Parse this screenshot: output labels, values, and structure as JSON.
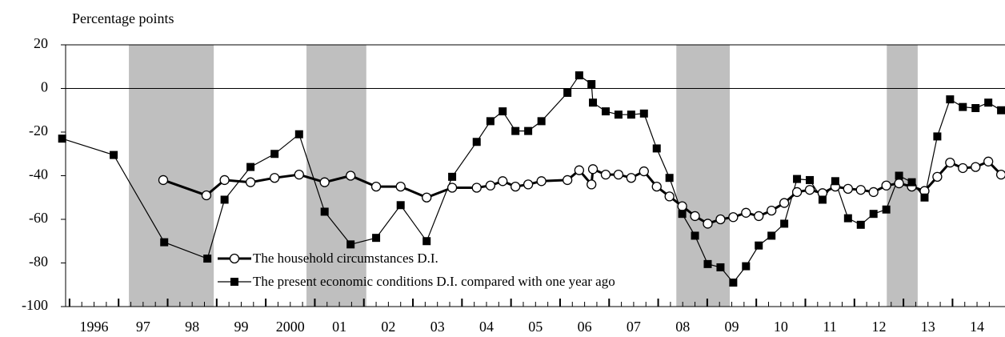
{
  "chart_data": {
    "type": "line",
    "y_axis_label": "Percentage points",
    "xlim": [
      1995.92,
      2015.07
    ],
    "ylim": [
      -100,
      20
    ],
    "yticks": [
      -100,
      -80,
      -60,
      -40,
      -20,
      0,
      20
    ],
    "xticks": [
      {
        "value": 1996.5,
        "label": "1996"
      },
      {
        "value": 1997.5,
        "label": "97"
      },
      {
        "value": 1998.5,
        "label": "98"
      },
      {
        "value": 1999.5,
        "label": "99"
      },
      {
        "value": 2000.5,
        "label": "2000"
      },
      {
        "value": 2001.5,
        "label": "01"
      },
      {
        "value": 2002.5,
        "label": "02"
      },
      {
        "value": 2003.5,
        "label": "03"
      },
      {
        "value": 2004.5,
        "label": "04"
      },
      {
        "value": 2005.5,
        "label": "05"
      },
      {
        "value": 2006.5,
        "label": "06"
      },
      {
        "value": 2007.5,
        "label": "07"
      },
      {
        "value": 2008.5,
        "label": "08"
      },
      {
        "value": 2009.5,
        "label": "09"
      },
      {
        "value": 2010.5,
        "label": "10"
      },
      {
        "value": 2011.5,
        "label": "11"
      },
      {
        "value": 2012.5,
        "label": "12"
      },
      {
        "value": 2013.5,
        "label": "13"
      },
      {
        "value": 2014.5,
        "label": "14"
      }
    ],
    "shaded_periods": [
      [
        1997.21,
        1998.94
      ],
      [
        2000.83,
        2002.05
      ],
      [
        2008.37,
        2009.46
      ],
      [
        2012.66,
        2013.29
      ]
    ],
    "shade_color": "#bfbfbf",
    "series": [
      {
        "name": "The household circumstances D.I.",
        "color": "#000000",
        "marker": "circle",
        "x": [
          1997.91,
          1998.79,
          1999.16,
          1999.69,
          2000.18,
          2000.68,
          2001.2,
          2001.73,
          2002.25,
          2002.75,
          2003.28,
          2003.8,
          2004.3,
          2004.58,
          2004.83,
          2005.09,
          2005.35,
          2005.62,
          2006.15,
          2006.39,
          2006.64,
          2006.67,
          2006.93,
          2007.19,
          2007.45,
          2007.71,
          2007.97,
          2008.23,
          2008.49,
          2008.75,
          2009.01,
          2009.27,
          2009.53,
          2009.79,
          2010.05,
          2010.31,
          2010.57,
          2010.83,
          2011.09,
          2011.35,
          2011.61,
          2011.87,
          2012.13,
          2012.39,
          2012.65,
          2012.91,
          2013.17,
          2013.43,
          2013.69,
          2013.95,
          2014.21,
          2014.47,
          2014.73,
          2014.99
        ],
        "values": [
          -42,
          -49,
          -42,
          -43,
          -41,
          -39.5,
          -43,
          -40,
          -45,
          -45,
          -50,
          -45.5,
          -45.5,
          -44.5,
          -42.5,
          -45,
          -44,
          -42.5,
          -42,
          -37.5,
          -44,
          -37,
          -39.5,
          -39.5,
          -41,
          -38,
          -45,
          -49.5,
          -54,
          -58.5,
          -62,
          -60,
          -59,
          -57,
          -58.5,
          -56,
          -52.5,
          -47.5,
          -46.5,
          -48,
          -45,
          -46,
          -46.5,
          -47.5,
          -44.5,
          -43.5,
          -45,
          -47,
          -40.5,
          -34,
          -36.5,
          -36,
          -33.5,
          -39.5
        ]
      },
      {
        "name": "The present economic conditions D.I. compared with one year ago",
        "color": "#000000",
        "marker": "square",
        "x": [
          1995.85,
          1996.9,
          1997.93,
          1998.81,
          1999.16,
          1999.69,
          2000.18,
          2000.68,
          2001.2,
          2001.73,
          2002.25,
          2002.75,
          2003.28,
          2003.8,
          2004.3,
          2004.58,
          2004.83,
          2005.09,
          2005.35,
          2005.62,
          2006.15,
          2006.39,
          2006.64,
          2006.67,
          2006.93,
          2007.19,
          2007.45,
          2007.71,
          2007.97,
          2008.23,
          2008.49,
          2008.75,
          2009.01,
          2009.27,
          2009.53,
          2009.79,
          2010.05,
          2010.31,
          2010.57,
          2010.83,
          2011.09,
          2011.35,
          2011.61,
          2011.87,
          2012.13,
          2012.39,
          2012.65,
          2012.91,
          2013.17,
          2013.43,
          2013.69,
          2013.95,
          2014.21,
          2014.47,
          2014.73,
          2014.99
        ],
        "values": [
          -23,
          -30.5,
          -70.5,
          -78,
          -51,
          -36,
          -30,
          -21,
          -56.5,
          -71.5,
          -68.5,
          -53.5,
          -70,
          -40.5,
          -24.5,
          -15,
          -10.5,
          -19.5,
          -19.5,
          -15,
          -2,
          6,
          2,
          -6.5,
          -10.5,
          -12,
          -12,
          -11.5,
          -27.5,
          -41,
          -57.5,
          -67.5,
          -80.5,
          -82,
          -89,
          -81.5,
          -72,
          -67.5,
          -62,
          -41.5,
          -42,
          -51,
          -42.5,
          -59.5,
          -62.5,
          -57.5,
          -55.5,
          -40,
          -43,
          -50,
          -22,
          -5,
          -8.5,
          -9,
          -6.5,
          -10
        ]
      }
    ]
  }
}
